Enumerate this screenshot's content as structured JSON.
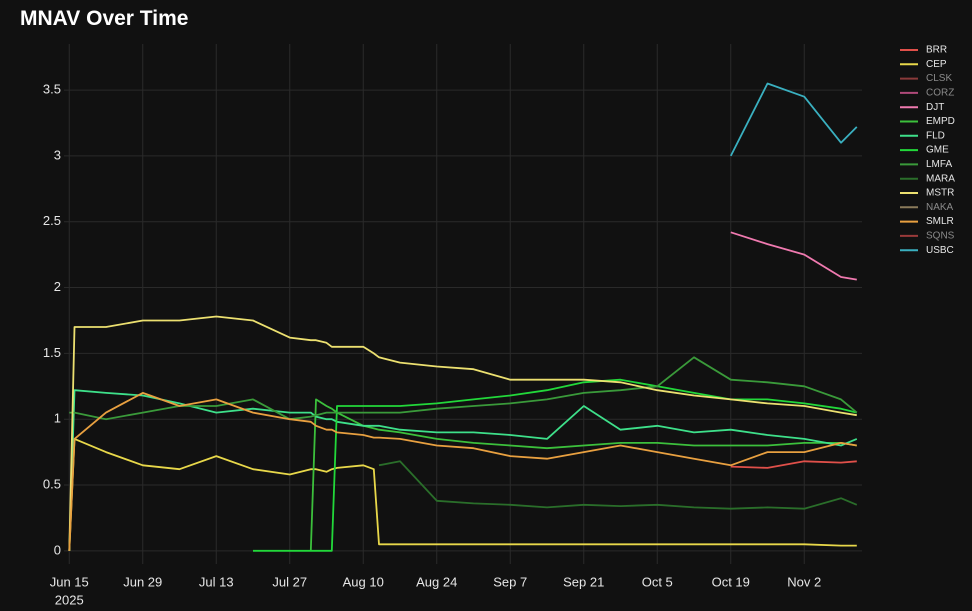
{
  "chart_data": {
    "type": "line",
    "title": "MNAV Over Time",
    "x": [
      "2025-06-15",
      "2025-06-16",
      "2025-06-22",
      "2025-06-29",
      "2025-07-06",
      "2025-07-13",
      "2025-07-20",
      "2025-07-27",
      "2025-07-31",
      "2025-08-01",
      "2025-08-03",
      "2025-08-04",
      "2025-08-05",
      "2025-08-10",
      "2025-08-12",
      "2025-08-13",
      "2025-08-17",
      "2025-08-24",
      "2025-08-31",
      "2025-09-07",
      "2025-09-14",
      "2025-09-21",
      "2025-09-28",
      "2025-10-05",
      "2025-10-12",
      "2025-10-19",
      "2025-10-26",
      "2025-11-02",
      "2025-11-09",
      "2025-11-12"
    ],
    "xlim": [
      "2025-06-14",
      "2025-11-13"
    ],
    "xticks": [
      {
        "value": "2025-06-15",
        "label": "Jun 15"
      },
      {
        "value": "2025-06-29",
        "label": "Jun 29"
      },
      {
        "value": "2025-07-13",
        "label": "Jul 13"
      },
      {
        "value": "2025-07-27",
        "label": "Jul 27"
      },
      {
        "value": "2025-08-10",
        "label": "Aug 10"
      },
      {
        "value": "2025-08-24",
        "label": "Aug 24"
      },
      {
        "value": "2025-09-07",
        "label": "Sep 7"
      },
      {
        "value": "2025-09-21",
        "label": "Sep 21"
      },
      {
        "value": "2025-10-05",
        "label": "Oct 5"
      },
      {
        "value": "2025-10-19",
        "label": "Oct 19"
      },
      {
        "value": "2025-11-02",
        "label": "Nov 2"
      }
    ],
    "xtick_year": "2025",
    "ylim": [
      -0.1,
      3.85
    ],
    "yticks": [
      0,
      0.5,
      1,
      1.5,
      2,
      2.5,
      3,
      3.5
    ],
    "grid": true,
    "legend": "right",
    "series": [
      {
        "name": "BRR",
        "color": "#e0504a",
        "values": [
          null,
          null,
          null,
          null,
          null,
          null,
          null,
          null,
          null,
          null,
          null,
          null,
          null,
          null,
          null,
          null,
          null,
          null,
          null,
          null,
          null,
          null,
          null,
          null,
          null,
          0.64,
          0.63,
          0.68,
          0.67,
          0.68
        ]
      },
      {
        "name": "CEP",
        "color": "#e8d84a",
        "values": [
          0,
          0.85,
          0.75,
          0.65,
          0.62,
          0.72,
          0.62,
          0.58,
          0.62,
          0.62,
          0.6,
          0.62,
          0.63,
          0.65,
          0.62,
          0.05,
          0.05,
          0.05,
          0.05,
          0.05,
          0.05,
          0.05,
          0.05,
          0.05,
          0.05,
          0.05,
          0.05,
          0.05,
          0.04,
          0.04
        ]
      },
      {
        "name": "CLSK",
        "color": "#8a3a3a",
        "values": [
          null,
          null,
          null,
          null,
          null,
          null,
          null,
          null,
          null,
          null,
          null,
          null,
          null,
          null,
          null,
          null,
          null,
          null,
          null,
          null,
          null,
          null,
          null,
          null,
          null,
          null,
          null,
          null,
          null,
          null
        ]
      },
      {
        "name": "CORZ",
        "color": "#b04a7a",
        "values": [
          null,
          null,
          null,
          null,
          null,
          null,
          null,
          null,
          null,
          null,
          null,
          null,
          null,
          null,
          null,
          null,
          null,
          null,
          null,
          null,
          null,
          null,
          null,
          null,
          null,
          null,
          null,
          null,
          null,
          null
        ]
      },
      {
        "name": "DJT",
        "color": "#f07ab0",
        "values": [
          null,
          null,
          null,
          null,
          null,
          null,
          null,
          null,
          null,
          null,
          null,
          null,
          null,
          null,
          null,
          null,
          null,
          null,
          null,
          null,
          null,
          null,
          null,
          null,
          null,
          2.42,
          2.33,
          2.25,
          2.08,
          2.06
        ]
      },
      {
        "name": "EMPD",
        "color": "#3cc03c",
        "values": [
          null,
          null,
          null,
          null,
          null,
          null,
          null,
          null,
          0,
          1.15,
          1.1,
          1.08,
          1.05,
          0.95,
          0.93,
          0.92,
          0.9,
          0.85,
          0.82,
          0.8,
          0.78,
          0.8,
          0.82,
          0.82,
          0.8,
          0.8,
          0.8,
          0.82,
          0.82,
          0.8
        ]
      },
      {
        "name": "FLD",
        "color": "#3ee08a",
        "values": [
          0,
          1.22,
          1.2,
          1.18,
          1.12,
          1.05,
          1.08,
          1.05,
          1.05,
          1.02,
          1.0,
          1.0,
          0.98,
          0.95,
          0.95,
          0.95,
          0.92,
          0.9,
          0.9,
          0.88,
          0.85,
          1.1,
          0.92,
          0.95,
          0.9,
          0.92,
          0.88,
          0.85,
          0.8,
          0.85
        ]
      },
      {
        "name": "GME",
        "color": "#22d83a",
        "values": [
          null,
          null,
          null,
          null,
          null,
          null,
          0,
          0,
          0,
          0,
          0,
          0,
          1.1,
          1.1,
          1.1,
          1.1,
          1.1,
          1.12,
          1.15,
          1.18,
          1.22,
          1.28,
          1.3,
          1.25,
          1.2,
          1.15,
          1.15,
          1.12,
          1.08,
          1.05
        ]
      },
      {
        "name": "LMFA",
        "color": "#3a9a3a",
        "values": [
          1.05,
          1.05,
          1.0,
          1.05,
          1.1,
          1.1,
          1.15,
          1.0,
          1.02,
          1.03,
          1.05,
          1.05,
          1.05,
          1.05,
          1.05,
          1.05,
          1.05,
          1.08,
          1.1,
          1.12,
          1.15,
          1.2,
          1.22,
          1.25,
          1.47,
          1.3,
          1.28,
          1.25,
          1.15,
          1.05
        ]
      },
      {
        "name": "MARA",
        "color": "#2a6e2a",
        "values": [
          null,
          null,
          null,
          null,
          null,
          null,
          null,
          null,
          null,
          null,
          null,
          null,
          null,
          null,
          null,
          0.65,
          0.68,
          0.38,
          0.36,
          0.35,
          0.33,
          0.35,
          0.34,
          0.35,
          0.33,
          0.32,
          0.33,
          0.32,
          0.4,
          0.35
        ]
      },
      {
        "name": "MSTR",
        "color": "#ece070",
        "values": [
          0,
          1.7,
          1.7,
          1.75,
          1.75,
          1.78,
          1.75,
          1.62,
          1.6,
          1.6,
          1.58,
          1.55,
          1.55,
          1.55,
          1.5,
          1.47,
          1.43,
          1.4,
          1.38,
          1.3,
          1.3,
          1.3,
          1.28,
          1.22,
          1.18,
          1.15,
          1.12,
          1.1,
          1.05,
          1.03
        ]
      },
      {
        "name": "NAKA",
        "color": "#8a7a5a",
        "values": [
          null,
          null,
          null,
          null,
          null,
          null,
          null,
          null,
          null,
          null,
          null,
          null,
          null,
          null,
          null,
          null,
          null,
          null,
          null,
          null,
          null,
          null,
          null,
          null,
          null,
          null,
          null,
          null,
          null,
          null
        ]
      },
      {
        "name": "SMLR",
        "color": "#e8a040",
        "values": [
          0,
          0.85,
          1.05,
          1.2,
          1.1,
          1.15,
          1.05,
          1.0,
          0.98,
          0.95,
          0.92,
          0.92,
          0.9,
          0.88,
          0.86,
          0.86,
          0.85,
          0.8,
          0.78,
          0.72,
          0.7,
          0.75,
          0.8,
          0.75,
          0.7,
          0.65,
          0.75,
          0.75,
          0.82,
          0.8
        ]
      },
      {
        "name": "SQNS",
        "color": "#9a3a3a",
        "values": [
          null,
          null,
          null,
          null,
          null,
          null,
          null,
          null,
          null,
          null,
          null,
          null,
          null,
          null,
          null,
          null,
          null,
          null,
          null,
          null,
          null,
          null,
          null,
          null,
          null,
          null,
          null,
          null,
          null,
          null
        ]
      },
      {
        "name": "USBC",
        "color": "#3ab0c0",
        "values": [
          null,
          null,
          null,
          null,
          null,
          null,
          null,
          null,
          null,
          null,
          null,
          null,
          null,
          null,
          null,
          null,
          null,
          null,
          null,
          null,
          null,
          null,
          null,
          null,
          null,
          3.0,
          3.55,
          3.45,
          3.1,
          3.22
        ]
      }
    ]
  }
}
